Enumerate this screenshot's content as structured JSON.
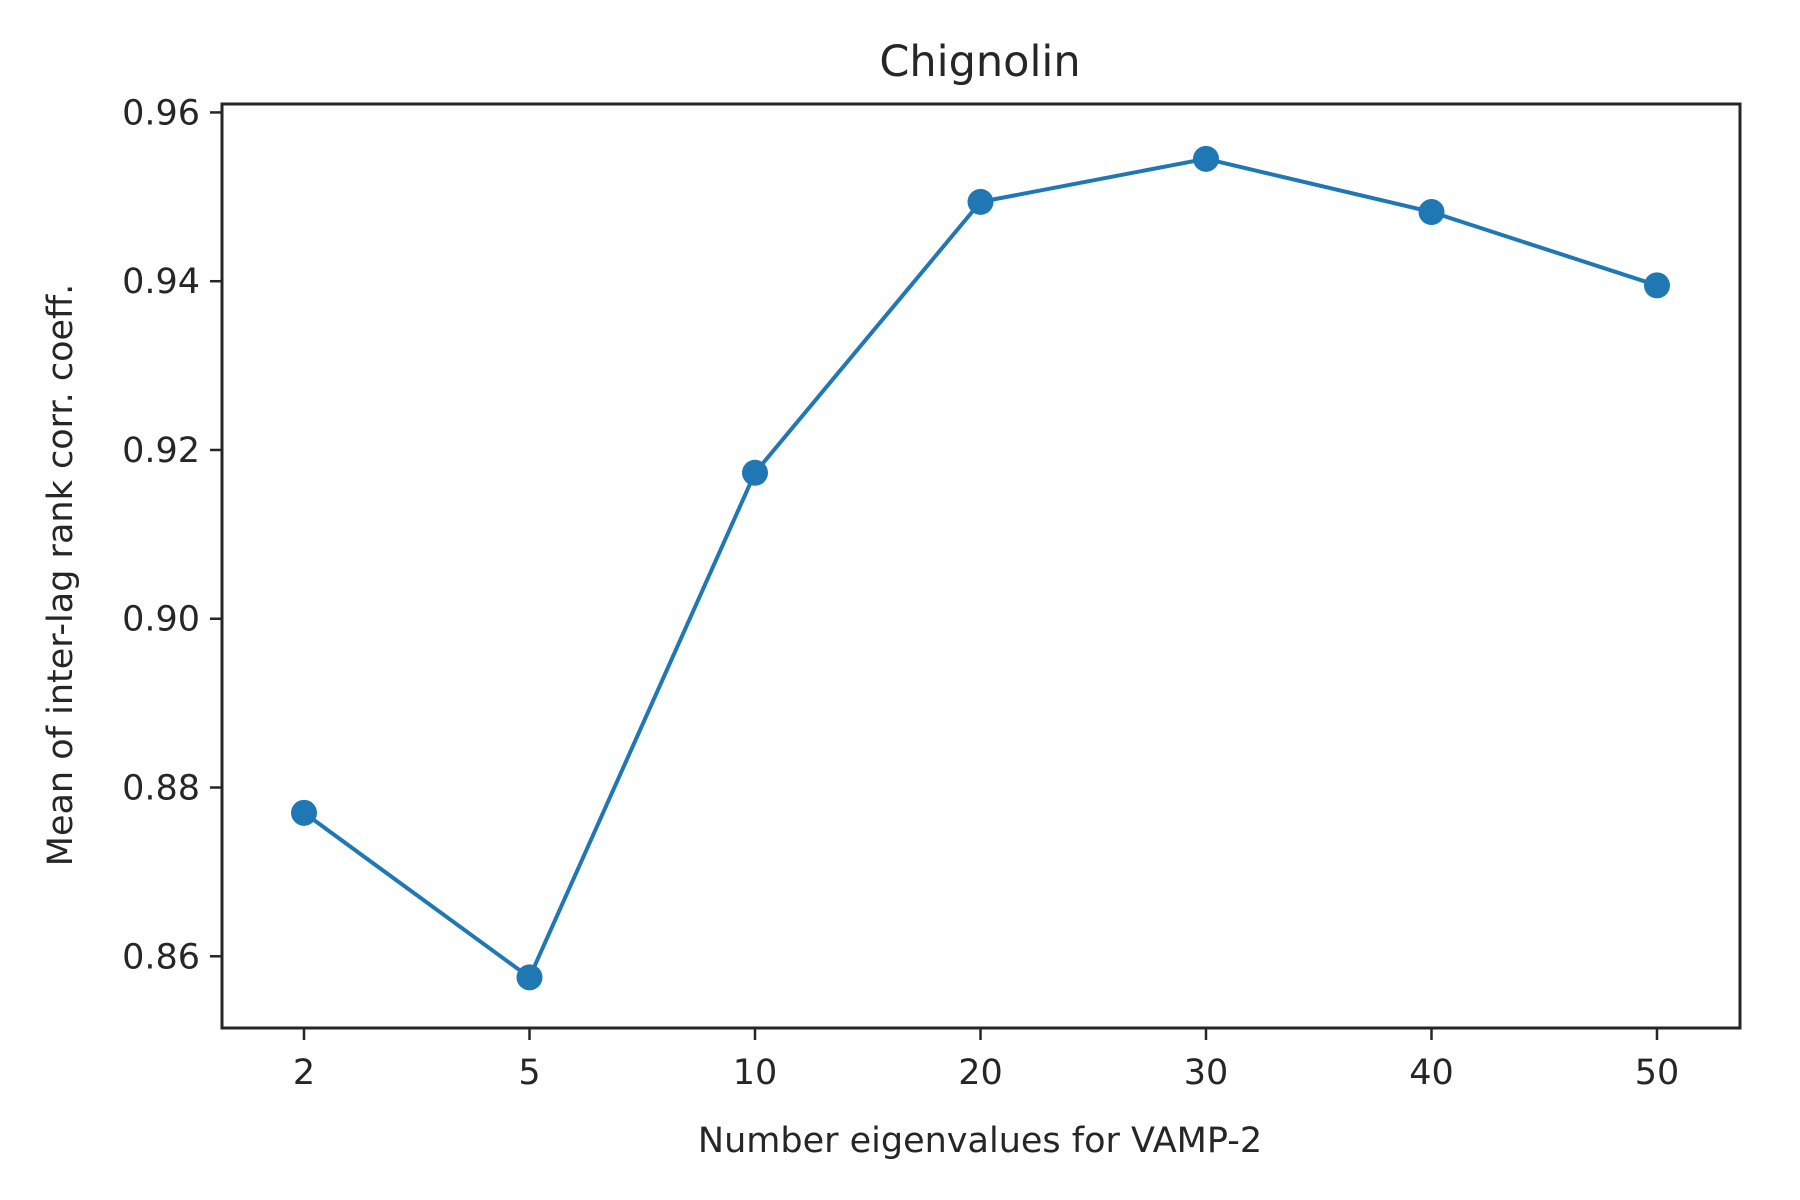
{
  "chart_data": {
    "type": "line",
    "title": "Chignolin",
    "xlabel": "Number eigenvalues for VAMP-2",
    "ylabel": "Mean of inter-lag rank corr. coeff.",
    "categories": [
      "2",
      "5",
      "10",
      "20",
      "30",
      "40",
      "50"
    ],
    "series": [
      {
        "values": [
          0.877,
          0.8575,
          0.9173,
          0.9494,
          0.9545,
          0.9482,
          0.9395
        ]
      }
    ],
    "ylim": [
      0.8515,
      0.961
    ],
    "yticks": [
      0.86,
      0.88,
      0.9,
      0.92,
      0.94,
      0.96
    ],
    "ytick_labels": [
      "0.86",
      "0.88",
      "0.90",
      "0.92",
      "0.94",
      "0.96"
    ],
    "grid": false,
    "legend": "none",
    "colors": {
      "series": "#1f77b4",
      "axes": "#262626",
      "text": "#262626"
    }
  }
}
